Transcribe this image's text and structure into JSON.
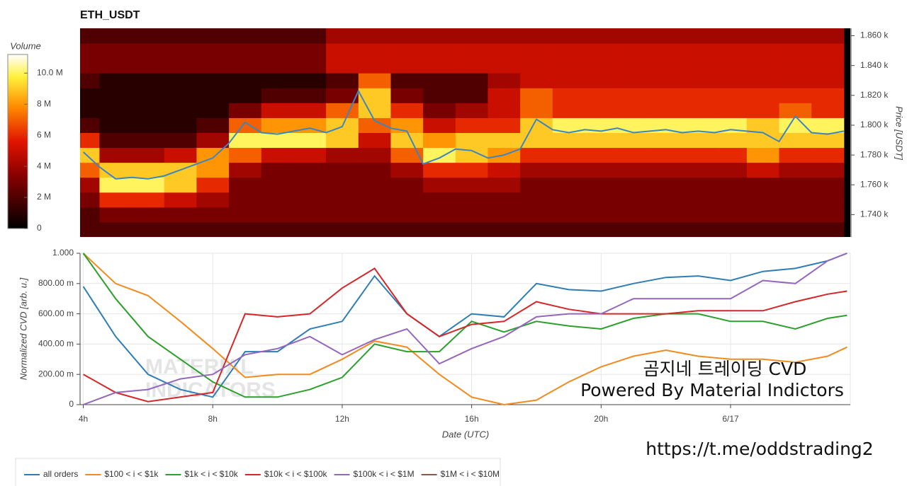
{
  "chart_data": [
    {
      "type": "heatmap",
      "title": "ETH_USDT",
      "y2label": "Price [USDT]",
      "colorbar_label": "Volume",
      "x": [
        4,
        5,
        6,
        7,
        8,
        9,
        10,
        11,
        12,
        13,
        14,
        15,
        16,
        17,
        18,
        19,
        20,
        21,
        22,
        23,
        24,
        25,
        26,
        27
      ],
      "y": [
        1730,
        1740,
        1750,
        1760,
        1770,
        1780,
        1790,
        1800,
        1810,
        1820,
        1830,
        1840,
        1850,
        1860
      ],
      "z": [
        [
          2000000.0,
          2000000.0,
          3000000.0,
          4000000.0,
          7000000.0,
          9000000.0,
          6000000.0,
          2000000.0,
          1000000.0,
          1000000.0,
          2000000.0,
          3000000.0,
          3000000.0,
          2000000.0
        ],
        [
          2000000.0,
          3000000.0,
          6000000.0,
          10000000.0,
          9000000.0,
          4000000.0,
          2000000.0,
          1000000.0,
          1000000.0,
          1000000.0,
          1000000.0,
          3000000.0,
          3000000.0,
          2000000.0
        ],
        [
          2000000.0,
          3000000.0,
          6000000.0,
          10000000.0,
          9000000.0,
          4000000.0,
          2000000.0,
          1000000.0,
          1000000.0,
          1000000.0,
          1000000.0,
          3000000.0,
          3000000.0,
          2000000.0
        ],
        [
          2000000.0,
          3000000.0,
          5000000.0,
          9000000.0,
          9000000.0,
          5000000.0,
          2000000.0,
          1000000.0,
          1000000.0,
          1000000.0,
          1000000.0,
          3000000.0,
          3000000.0,
          2000000.0
        ],
        [
          2000000.0,
          3000000.0,
          4000000.0,
          6000000.0,
          8000000.0,
          8000000.0,
          4000000.0,
          2000000.0,
          1000000.0,
          1000000.0,
          1000000.0,
          3000000.0,
          3000000.0,
          2000000.0
        ],
        [
          2000000.0,
          3000000.0,
          3000000.0,
          3000000.0,
          4000000.0,
          7000000.0,
          10000000.0,
          7000000.0,
          3000000.0,
          1000000.0,
          1000000.0,
          3000000.0,
          3000000.0,
          2000000.0
        ],
        [
          2000000.0,
          3000000.0,
          3000000.0,
          3000000.0,
          3000000.0,
          5000000.0,
          10000000.0,
          8000000.0,
          5000000.0,
          2000000.0,
          1000000.0,
          3000000.0,
          3000000.0,
          2000000.0
        ],
        [
          2000000.0,
          3000000.0,
          3000000.0,
          3000000.0,
          3000000.0,
          5000000.0,
          10000000.0,
          8000000.0,
          5000000.0,
          2000000.0,
          1000000.0,
          3000000.0,
          3000000.0,
          2000000.0
        ],
        [
          2000000.0,
          3000000.0,
          3000000.0,
          3000000.0,
          3000000.0,
          4000000.0,
          9000000.0,
          9000000.0,
          7000000.0,
          3000000.0,
          2000000.0,
          5000000.0,
          5000000.0,
          4000000.0
        ],
        [
          2000000.0,
          3000000.0,
          3000000.0,
          3000000.0,
          3000000.0,
          4000000.0,
          5000000.0,
          7000000.0,
          9000000.0,
          9000000.0,
          7000000.0,
          5000000.0,
          5000000.0,
          4000000.0
        ],
        [
          2000000.0,
          3000000.0,
          3000000.0,
          3000000.0,
          4000000.0,
          7000000.0,
          9000000.0,
          8000000.0,
          6000000.0,
          3000000.0,
          2000000.0,
          5000000.0,
          5000000.0,
          4000000.0
        ],
        [
          2000000.0,
          3000000.0,
          3000000.0,
          4000000.0,
          6000000.0,
          10000000.0,
          8000000.0,
          5000000.0,
          3000000.0,
          2000000.0,
          2000000.0,
          5000000.0,
          5000000.0,
          4000000.0
        ],
        [
          2000000.0,
          3000000.0,
          3000000.0,
          4000000.0,
          6000000.0,
          9000000.0,
          9000000.0,
          6000000.0,
          4000000.0,
          2000000.0,
          2000000.0,
          5000000.0,
          5000000.0,
          4000000.0
        ],
        [
          2000000.0,
          3000000.0,
          3000000.0,
          4000000.0,
          5000000.0,
          8000000.0,
          9000000.0,
          6000000.0,
          5000000.0,
          5000000.0,
          4000000.0,
          5000000.0,
          5000000.0,
          4000000.0
        ],
        [
          2000000.0,
          3000000.0,
          3000000.0,
          3000000.0,
          4000000.0,
          6000000.0,
          9000000.0,
          9000000.0,
          7000000.0,
          7000000.0,
          5000000.0,
          5000000.0,
          5000000.0,
          4000000.0
        ],
        [
          2000000.0,
          3000000.0,
          3000000.0,
          3000000.0,
          4000000.0,
          6000000.0,
          9000000.0,
          10000000.0,
          6000000.0,
          6000000.0,
          5000000.0,
          5000000.0,
          5000000.0,
          4000000.0
        ],
        [
          2000000.0,
          3000000.0,
          3000000.0,
          3000000.0,
          4000000.0,
          6000000.0,
          9000000.0,
          10000000.0,
          6000000.0,
          6000000.0,
          5000000.0,
          5000000.0,
          5000000.0,
          4000000.0
        ],
        [
          2000000.0,
          3000000.0,
          3000000.0,
          3000000.0,
          4000000.0,
          6000000.0,
          9000000.0,
          10000000.0,
          6000000.0,
          6000000.0,
          5000000.0,
          5000000.0,
          5000000.0,
          4000000.0
        ],
        [
          2000000.0,
          3000000.0,
          3000000.0,
          3000000.0,
          4000000.0,
          6000000.0,
          9000000.0,
          10000000.0,
          6000000.0,
          6000000.0,
          5000000.0,
          5000000.0,
          5000000.0,
          4000000.0
        ],
        [
          2000000.0,
          3000000.0,
          3000000.0,
          3000000.0,
          4000000.0,
          6000000.0,
          9000000.0,
          10000000.0,
          6000000.0,
          6000000.0,
          5000000.0,
          5000000.0,
          5000000.0,
          4000000.0
        ],
        [
          2000000.0,
          3000000.0,
          3000000.0,
          3000000.0,
          4000000.0,
          6000000.0,
          9000000.0,
          10000000.0,
          6000000.0,
          6000000.0,
          5000000.0,
          5000000.0,
          5000000.0,
          4000000.0
        ],
        [
          2000000.0,
          3000000.0,
          3000000.0,
          3000000.0,
          5000000.0,
          8000000.0,
          9000000.0,
          9000000.0,
          6000000.0,
          6000000.0,
          5000000.0,
          5000000.0,
          5000000.0,
          4000000.0
        ],
        [
          2000000.0,
          3000000.0,
          3000000.0,
          3000000.0,
          4000000.0,
          6000000.0,
          9000000.0,
          10000000.0,
          7000000.0,
          6000000.0,
          5000000.0,
          5000000.0,
          5000000.0,
          4000000.0
        ],
        [
          2000000.0,
          3000000.0,
          3000000.0,
          3000000.0,
          4000000.0,
          6000000.0,
          9000000.0,
          10000000.0,
          6000000.0,
          6000000.0,
          5000000.0,
          5000000.0,
          5000000.0,
          4000000.0
        ]
      ],
      "xlim": [
        3.9,
        27.7
      ],
      "y2lim": [
        1725,
        1865
      ],
      "y2ticks": [
        {
          "value": 1740,
          "label": "1.740 k"
        },
        {
          "value": 1760,
          "label": "1.760 k"
        },
        {
          "value": 1780,
          "label": "1.780 k"
        },
        {
          "value": 1800,
          "label": "1.800 k"
        },
        {
          "value": 1820,
          "label": "1.820 k"
        },
        {
          "value": 1840,
          "label": "1.840 k"
        },
        {
          "value": 1860,
          "label": "1.860 k"
        }
      ],
      "clim": [
        0,
        11200000
      ],
      "cticks": [
        0,
        {
          "value": 2000000,
          "label": "2 M"
        },
        {
          "value": 4000000,
          "label": "4 M"
        },
        {
          "value": 6000000,
          "label": "6 M"
        },
        {
          "value": 8000000,
          "label": "8 M"
        },
        {
          "value": 10000000,
          "label": "10.0 M"
        }
      ],
      "price_line": {
        "color": "#3b86c0",
        "x": [
          4,
          4.5,
          5,
          5.5,
          6,
          6.5,
          7,
          7.5,
          8,
          8.5,
          9,
          9.5,
          10,
          10.5,
          11,
          11.5,
          12,
          12.5,
          13,
          13.5,
          14,
          14.5,
          15,
          15.5,
          16,
          16.5,
          17,
          17.5,
          18,
          18.5,
          19,
          19.5,
          20,
          20.5,
          21,
          21.5,
          22,
          22.5,
          23,
          23.5,
          24,
          24.5,
          25,
          25.5,
          26,
          26.5,
          27,
          27.5
        ],
        "values": [
          1782,
          1772,
          1764,
          1765,
          1764,
          1766,
          1770,
          1774,
          1778,
          1788,
          1802,
          1795,
          1794,
          1796,
          1798,
          1795,
          1799,
          1823,
          1803,
          1798,
          1796,
          1774,
          1778,
          1784,
          1783,
          1778,
          1780,
          1784,
          1804,
          1797,
          1795,
          1797,
          1796,
          1798,
          1795,
          1796,
          1797,
          1795,
          1796,
          1795,
          1797,
          1796,
          1795,
          1789,
          1806,
          1795,
          1794,
          1796
        ]
      }
    },
    {
      "type": "line",
      "ylabel": "Normalized CVD [arb. u.]",
      "xlabel": "Date (UTC)",
      "x": [
        4,
        5,
        6,
        7,
        8,
        9,
        10,
        11,
        12,
        13,
        14,
        15,
        16,
        17,
        18,
        19,
        20,
        21,
        22,
        23,
        24,
        25,
        26,
        27,
        27.6
      ],
      "xlim": [
        3.9,
        27.7
      ],
      "xticks": [
        {
          "value": 4,
          "label": "4h"
        },
        {
          "value": 8,
          "label": "8h"
        },
        {
          "value": 12,
          "label": "12h"
        },
        {
          "value": 16,
          "label": "16h"
        },
        {
          "value": 20,
          "label": "20h"
        },
        {
          "value": 24,
          "label": "6/17"
        }
      ],
      "ylim": [
        0,
        1
      ],
      "yticks": [
        0,
        {
          "value": 0.2,
          "label": "200.00 m"
        },
        {
          "value": 0.4,
          "label": "400.00 m"
        },
        {
          "value": 0.6,
          "label": "600.00 m"
        },
        {
          "value": 0.8,
          "label": "800.00 m"
        },
        {
          "value": 1,
          "label": "1.000"
        }
      ],
      "grid": true,
      "legend": "bottom-left",
      "series": [
        {
          "name": "all orders",
          "color": "#2f7db5",
          "values": [
            0.78,
            0.45,
            0.2,
            0.1,
            0.05,
            0.35,
            0.35,
            0.5,
            0.55,
            0.85,
            0.6,
            0.45,
            0.6,
            0.58,
            0.8,
            0.76,
            0.75,
            0.8,
            0.84,
            0.85,
            0.82,
            0.88,
            0.9,
            0.95,
            1.0
          ]
        },
        {
          "name": "$100 < i < $1k",
          "color": "#f28a1e",
          "values": [
            1.0,
            0.8,
            0.72,
            0.55,
            0.37,
            0.18,
            0.2,
            0.2,
            0.3,
            0.42,
            0.38,
            0.2,
            0.05,
            0.0,
            0.03,
            0.15,
            0.25,
            0.32,
            0.36,
            0.32,
            0.3,
            0.3,
            0.28,
            0.32,
            0.38
          ]
        },
        {
          "name": "$1k < i < $10k",
          "color": "#2ca02c",
          "values": [
            1.0,
            0.7,
            0.45,
            0.3,
            0.15,
            0.05,
            0.05,
            0.1,
            0.18,
            0.4,
            0.35,
            0.35,
            0.55,
            0.48,
            0.55,
            0.52,
            0.5,
            0.57,
            0.6,
            0.6,
            0.55,
            0.55,
            0.5,
            0.57,
            0.59
          ]
        },
        {
          "name": "$10k < i < $100k",
          "color": "#d62728",
          "values": [
            0.2,
            0.08,
            0.02,
            0.05,
            0.08,
            0.6,
            0.58,
            0.6,
            0.77,
            0.9,
            0.6,
            0.45,
            0.53,
            0.55,
            0.68,
            0.63,
            0.6,
            0.6,
            0.6,
            0.62,
            0.62,
            0.62,
            0.68,
            0.73,
            0.75
          ]
        },
        {
          "name": "$100k < i < $1M",
          "color": "#9467bd",
          "values": [
            0.0,
            0.08,
            0.1,
            0.17,
            0.2,
            0.33,
            0.37,
            0.45,
            0.33,
            0.43,
            0.5,
            0.27,
            0.37,
            0.45,
            0.58,
            0.6,
            0.6,
            0.7,
            0.7,
            0.7,
            0.7,
            0.82,
            0.8,
            0.95,
            1.0
          ]
        },
        {
          "name": "$1M < i < $10M",
          "color": "#8c564b",
          "values": [
            null,
            null,
            null,
            null,
            null,
            null,
            null,
            null,
            null,
            null,
            null,
            null,
            null,
            null,
            null,
            null,
            null,
            null,
            null,
            null,
            null,
            null,
            null,
            null,
            null
          ]
        }
      ],
      "watermark": [
        "MATERIAL",
        "INDICATORS"
      ],
      "annotations": [
        "곰지네 트레이딩 CVD",
        "Powered By Material Indictors",
        "https://t.me/oddstrading2"
      ]
    }
  ]
}
